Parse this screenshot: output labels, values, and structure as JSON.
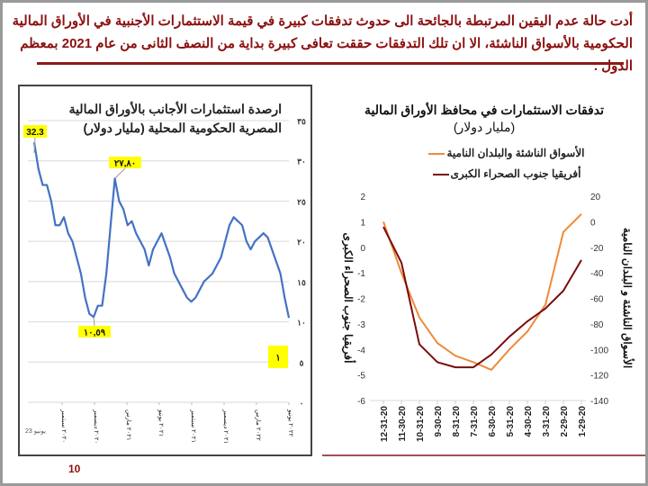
{
  "intro": {
    "line1": "أدت حالة عدم اليقين المرتبطة بالجائحة الى حدوث تدفقات كبيرة في قيمة الاستثمارات الأجنبية في الأوراق المالية",
    "line2": "الحكومية بالأسواق الناشئة، الا ان تلك التدفقات حققت تعافى كبيرة بداية من النصف الثانى من عام 2021 بمعظم الدول ."
  },
  "page_number": "10",
  "colors": {
    "text_red": "#8b1010",
    "egypt_line": "#4472c4",
    "em_line": "#ed8b3a",
    "ssa_line": "#7b0c0c",
    "callout": "#ffff00"
  },
  "chart_data": [
    {
      "type": "line",
      "title": "ارصدة استثمارات الأجانب بالأوراق المالية المصرية الحكومية المحلية (مليار دولار)",
      "y_ticks": [
        "٠",
        "٥",
        "١٠",
        "١٥",
        "٢٠",
        "٢٥",
        "٣٠",
        "٣٥"
      ],
      "ylim": [
        0,
        35
      ],
      "y_axis_side": "right",
      "grid": true,
      "x_first_label": "23 يونيو",
      "x_labels": [
        "٢٠٢٠ سبتمبر",
        "٢٠٢٠ ديسمبر",
        "٢٠٢١ مارس",
        "٢٠٢١ يونيو",
        "٢٠٢١ سبتمبر",
        "٢٠٢١ ديسمبر",
        "٢٠٢٢ مارس",
        "٢٠٢٢ يونيو"
      ],
      "values": [
        32.3,
        29,
        27,
        27,
        25,
        22,
        22,
        23,
        21,
        20,
        18,
        16,
        13,
        11,
        10.59,
        12,
        12,
        16,
        22,
        27.8,
        25,
        24,
        22,
        22.5,
        21,
        20,
        19,
        17,
        19,
        20,
        21,
        19.5,
        18,
        16,
        15,
        14,
        13,
        12.5,
        13,
        14,
        15,
        15.5,
        16,
        17,
        18,
        20,
        22,
        23,
        22.5,
        22,
        20,
        19,
        20,
        20.5,
        21,
        20.5,
        19,
        17.5,
        16,
        13,
        10.5
      ],
      "annotations": [
        {
          "label": "32.3",
          "index": 0
        },
        {
          "label": "٢٧,٨٠",
          "index": 19
        },
        {
          "label": "١٠,٥٩",
          "index": 14
        },
        {
          "label": "١",
          "index": null
        }
      ]
    },
    {
      "type": "line",
      "title": "تدفقات الاستثمارات في محافظ الأوراق المالية",
      "subtitle": "(مليار دولار)",
      "categories": [
        "12-31-20",
        "11-30-20",
        "10-31-20",
        "9-30-20",
        "8-31-20",
        "7-31-20",
        "6-30-20",
        "5-31-20",
        "4-30-20",
        "3-31-20",
        "2-29-20",
        "1-29-20"
      ],
      "left_axis": {
        "label": "أفريقيا جنوب الصحراء الكبرى",
        "ticks": [
          "2",
          "1",
          "0",
          "-1",
          "-2",
          "-3",
          "-4",
          "-5",
          "-6"
        ],
        "ylim": [
          -6,
          2
        ]
      },
      "right_axis": {
        "label": "الأسواق الناشئة و البلدان النامية",
        "ticks": [
          "20",
          "0",
          "-20",
          "-40",
          "-60",
          "-80",
          "-100",
          "-120",
          "-140"
        ],
        "ylim": [
          -140,
          20
        ]
      },
      "legend_position": "top",
      "series": [
        {
          "name": "الأسواق الناشئة والبلدان النامية",
          "axis": "right",
          "values": [
            0,
            -40,
            -75,
            -95,
            -105,
            -110,
            -116,
            -100,
            -86,
            -65,
            -8,
            6
          ]
        },
        {
          "name": "أفريقيا جنوب الصحراء الكبرى",
          "axis": "left",
          "values": [
            0.8,
            -0.6,
            -3.8,
            -4.5,
            -4.7,
            -4.7,
            -4.2,
            -3.5,
            -2.9,
            -2.4,
            -1.7,
            -0.5
          ]
        }
      ]
    }
  ]
}
